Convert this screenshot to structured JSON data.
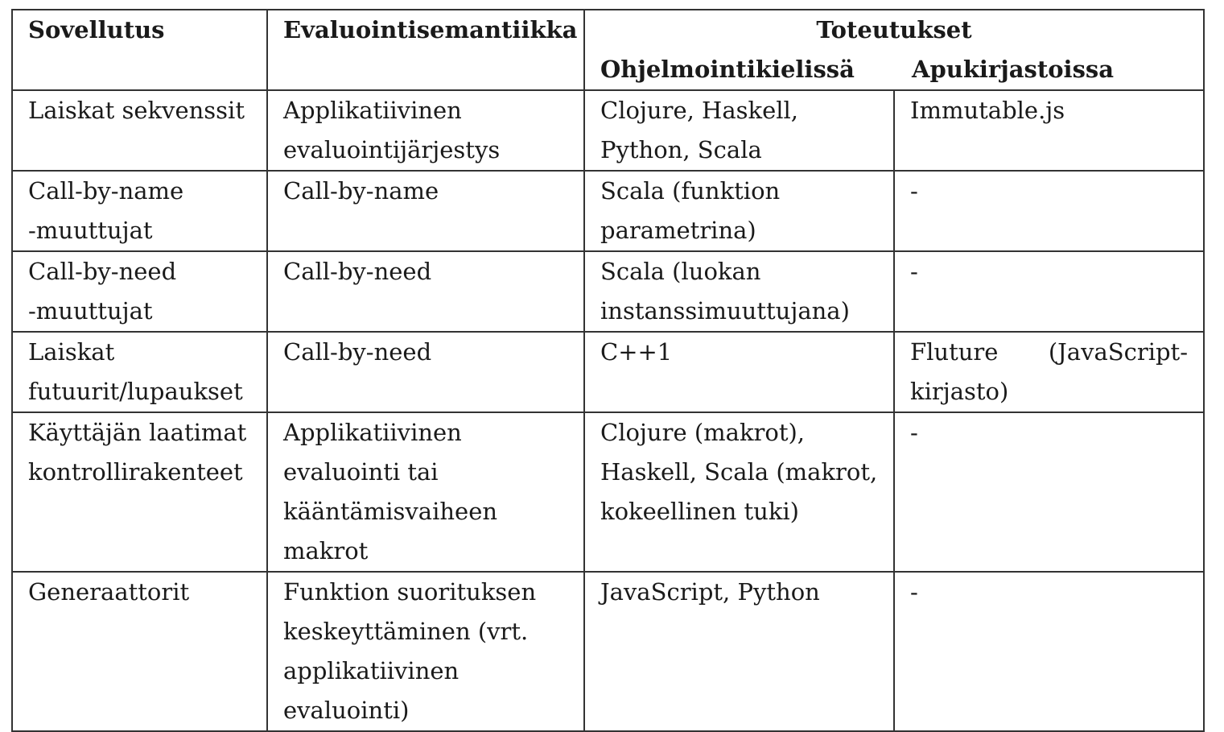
{
  "table": {
    "headers": {
      "col1": "Sovellutus",
      "col2": "Evaluointisemantiikka",
      "col3_group": "Toteutukset",
      "col3": "Ohjelmointikielissä",
      "col4": "Apukirjastoissa"
    },
    "rows": [
      {
        "sovellutus": [
          "Laiskat sekvenssit"
        ],
        "semantiikka": [
          "Applikatiivinen",
          "evaluointijärjestys"
        ],
        "kielet": [
          "Clojure, Haskell,",
          "Python, Scala"
        ],
        "kirjastot": [
          "Immutable.js"
        ]
      },
      {
        "sovellutus": [
          "Call-by-name",
          "-muuttujat"
        ],
        "semantiikka": [
          "Call-by-name"
        ],
        "kielet": [
          "Scala (funktion",
          "parametrina)"
        ],
        "kirjastot": [
          "-"
        ]
      },
      {
        "sovellutus": [
          "Call-by-need",
          "-muuttujat"
        ],
        "semantiikka": [
          "Call-by-need"
        ],
        "kielet": [
          "Scala (luokan",
          "instanssimuuttujana)"
        ],
        "kirjastot": [
          "-"
        ]
      },
      {
        "sovellutus": [
          "Laiskat",
          "futuurit/lupaukset"
        ],
        "semantiikka": [
          "Call-by-need"
        ],
        "kielet": [
          "C++1"
        ],
        "kirjastot_justified": [
          "Fluture",
          "(JavaScript-"
        ],
        "kirjastot": [
          "kirjasto)"
        ]
      },
      {
        "sovellutus": [
          "Käyttäjän laatimat",
          "kontrollirakenteet"
        ],
        "semantiikka": [
          "Applikatiivinen",
          "evaluointi tai",
          "kääntämisvaiheen",
          "makrot"
        ],
        "kielet": [
          "Clojure (makrot),",
          "Haskell, Scala (makrot,",
          "kokeellinen tuki)"
        ],
        "kirjastot": [
          "-"
        ]
      },
      {
        "sovellutus": [
          "Generaattorit"
        ],
        "semantiikka": [
          "Funktion suorituksen",
          "keskeyttäminen (vrt.",
          "applikatiivinen",
          "evaluointi)"
        ],
        "kielet": [
          "JavaScript, Python"
        ],
        "kirjastot": [
          "-"
        ]
      }
    ]
  }
}
